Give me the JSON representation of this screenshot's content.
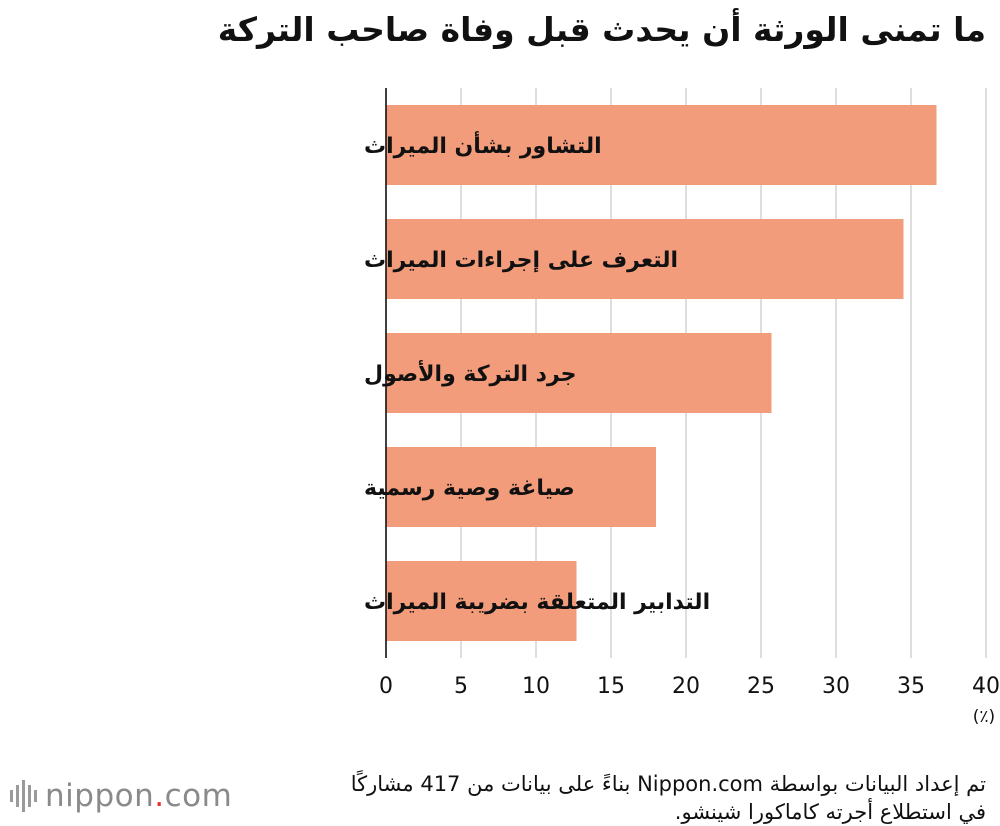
{
  "title": "ما تمنى الورثة أن يحدث قبل وفاة صاحب التركة",
  "chart_data": {
    "type": "bar",
    "orientation": "horizontal",
    "categories": [
      "التشاور بشأن الميراث",
      "التعرف على إجراءات الميراث",
      "جرد التركة والأصول",
      "صياغة وصية رسمية",
      "التدابير المتعلقة بضريبة الميراث"
    ],
    "values": [
      36.7,
      34.5,
      25.7,
      18.0,
      12.7
    ],
    "xlim": [
      0,
      40
    ],
    "xticks": [
      0,
      5,
      10,
      15,
      20,
      25,
      30,
      35,
      40
    ],
    "unit": "(٪)",
    "grid": true,
    "bar_color": "#f29c7b"
  },
  "source": {
    "line1": "تم إعداد البيانات بواسطة Nippon.com بناءً على بيانات من 417 مشاركًا",
    "line2": "في استطلاع أجرته كاماكورا شينشو."
  },
  "logo": {
    "name": "nippon",
    "dot": ".",
    "tld": "com"
  }
}
